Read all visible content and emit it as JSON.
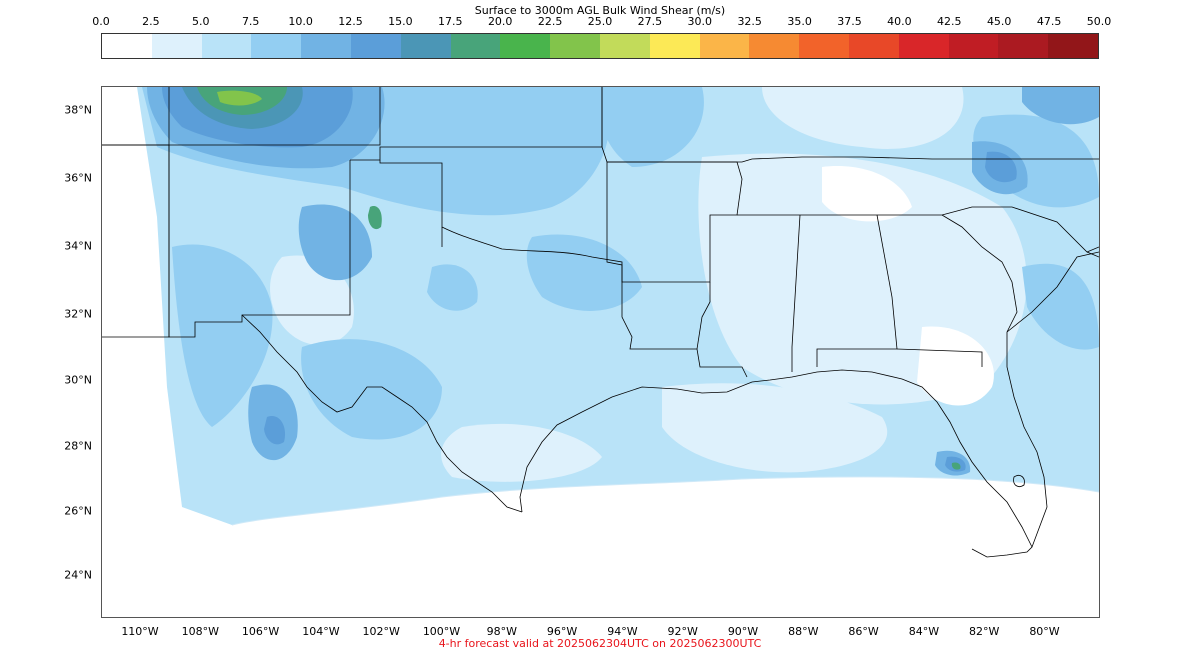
{
  "colorbar": {
    "title": "Surface to 3000m AGL Bulk Wind Shear (m/s)",
    "ticks": [
      "0.0",
      "2.5",
      "5.0",
      "7.5",
      "10.0",
      "12.5",
      "15.0",
      "17.5",
      "20.0",
      "22.5",
      "25.0",
      "27.5",
      "30.0",
      "32.5",
      "35.0",
      "37.5",
      "40.0",
      "42.5",
      "45.0",
      "47.5",
      "50.0"
    ],
    "colors": [
      "#ffffff",
      "#def1fc",
      "#b9e3f8",
      "#93cef2",
      "#71b3e4",
      "#5b9ed9",
      "#4b96b6",
      "#48a47a",
      "#49b44c",
      "#82c44b",
      "#c2db5a",
      "#fce956",
      "#fbb548",
      "#f68a32",
      "#f2632a",
      "#e84828",
      "#d92629",
      "#c01d24",
      "#ab1a21",
      "#921619"
    ]
  },
  "map": {
    "lat_labels": [
      "38°N",
      "36°N",
      "34°N",
      "32°N",
      "30°N",
      "28°N",
      "26°N",
      "24°N"
    ],
    "lon_labels": [
      "110°W",
      "108°W",
      "106°W",
      "104°W",
      "102°W",
      "100°W",
      "98°W",
      "96°W",
      "94°W",
      "92°W",
      "90°W",
      "88°W",
      "86°W",
      "84°W",
      "82°W",
      "80°W"
    ],
    "shear_colors": {
      "calm": "#ffffff",
      "light": "#def1fc",
      "moderate": "#b9e3f8",
      "elevated": "#93cef2",
      "strong": "#71b3e4",
      "high": "#5b9ed9",
      "very_high": "#4b96b6",
      "extreme": "#48a47a",
      "peak": "#82c44b"
    },
    "boundary_color": "#000000"
  },
  "caption": {
    "text": "4-hr forecast valid at 2025062304UTC on 2025062300UTC",
    "color": "#e8141b"
  }
}
